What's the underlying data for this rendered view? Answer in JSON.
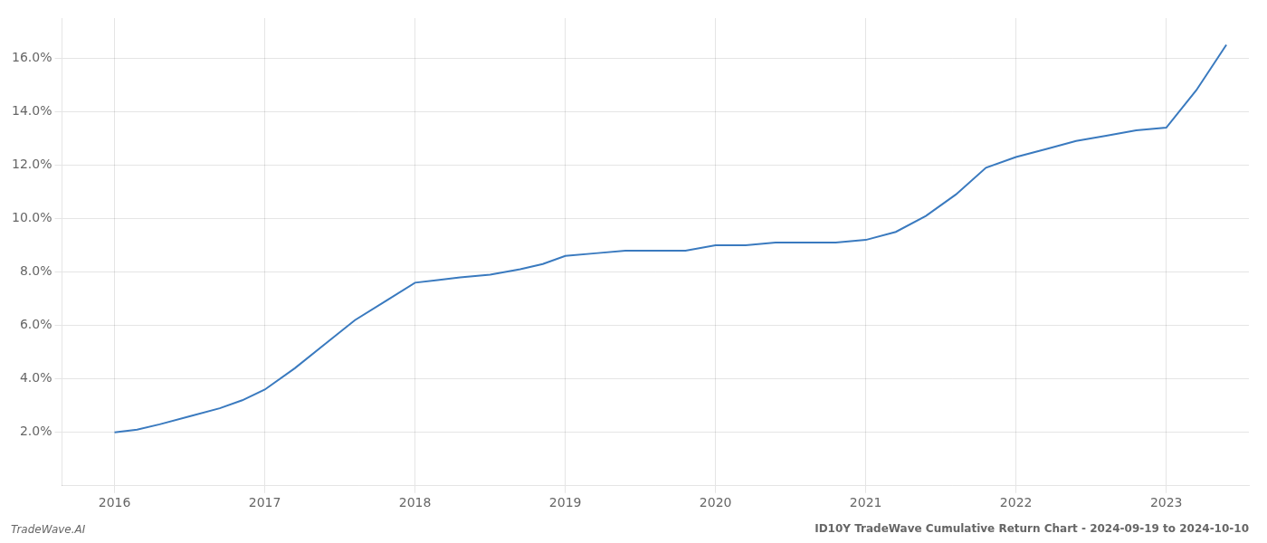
{
  "chart_data": {
    "type": "line",
    "title": "ID10Y TradeWave Cumulative Return Chart - 2024-09-19 to 2024-10-10",
    "annotations": [
      "TradeWave.AI"
    ],
    "x": [
      2016.0,
      2016.15,
      2016.3,
      2016.5,
      2016.7,
      2016.85,
      2017.0,
      2017.2,
      2017.4,
      2017.6,
      2017.8,
      2018.0,
      2018.15,
      2018.3,
      2018.5,
      2018.7,
      2018.85,
      2019.0,
      2019.2,
      2019.4,
      2019.6,
      2019.8,
      2020.0,
      2020.2,
      2020.4,
      2020.6,
      2020.8,
      2021.0,
      2021.2,
      2021.4,
      2021.6,
      2021.8,
      2022.0,
      2022.2,
      2022.4,
      2022.6,
      2022.8,
      2023.0,
      2023.2,
      2023.4
    ],
    "values": [
      0.02,
      0.021,
      0.023,
      0.026,
      0.029,
      0.032,
      0.036,
      0.044,
      0.053,
      0.062,
      0.069,
      0.076,
      0.077,
      0.078,
      0.079,
      0.081,
      0.083,
      0.086,
      0.087,
      0.088,
      0.088,
      0.088,
      0.09,
      0.09,
      0.091,
      0.091,
      0.091,
      0.092,
      0.095,
      0.101,
      0.109,
      0.119,
      0.123,
      0.126,
      0.129,
      0.131,
      0.133,
      0.134,
      0.148,
      0.165
    ],
    "color": "#3a7abf",
    "xlim": [
      2015.65,
      2023.55
    ],
    "xticks": [
      2016,
      2017,
      2018,
      2019,
      2020,
      2021,
      2022,
      2023
    ],
    "ylim": [
      0.0,
      0.175
    ],
    "yticks": [
      {
        "value": 0.02,
        "label": "2.0%"
      },
      {
        "value": 0.04,
        "label": "4.0%"
      },
      {
        "value": 0.06,
        "label": "6.0%"
      },
      {
        "value": 0.08,
        "label": "8.0%"
      },
      {
        "value": 0.1,
        "label": "10.0%"
      },
      {
        "value": 0.12,
        "label": "12.0%"
      },
      {
        "value": 0.14,
        "label": "14.0%"
      },
      {
        "value": 0.16,
        "label": "16.0%"
      }
    ],
    "grid": true
  }
}
